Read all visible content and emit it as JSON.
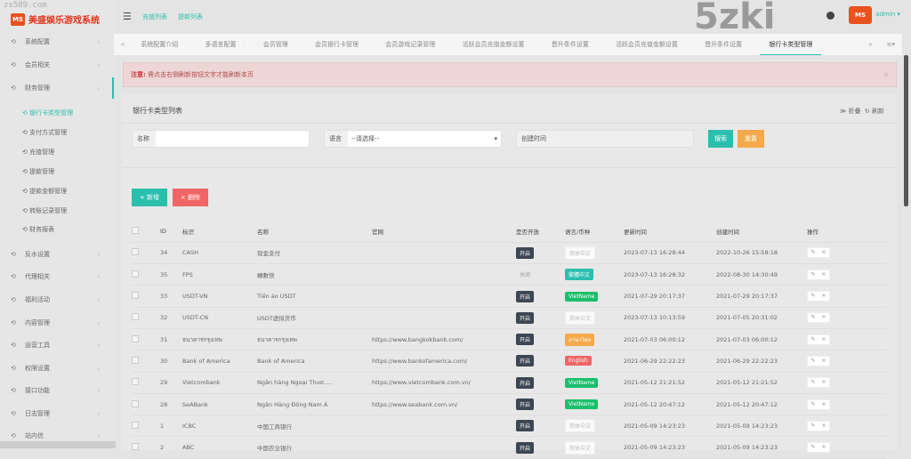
{
  "watermark": "zs589.com",
  "brand": {
    "logo": "MS",
    "title": "美盛娱乐游戏系统"
  },
  "header": {
    "links": [
      "充值列表",
      "提款列表"
    ],
    "user": "admin ▾",
    "big_watermark": "5zki"
  },
  "sidebar": {
    "top": [
      {
        "label": "系统配置"
      },
      {
        "label": "会员相关"
      },
      {
        "label": "财务管理"
      }
    ],
    "sub": [
      {
        "label": "银行卡类型管理",
        "active": true
      },
      {
        "label": "支付方式管理"
      },
      {
        "label": "充值管理"
      },
      {
        "label": "提款管理"
      },
      {
        "label": "提款金额管理"
      },
      {
        "label": "转账记录管理"
      },
      {
        "label": "财务报表"
      }
    ],
    "bottom": [
      {
        "label": "反水设置"
      },
      {
        "label": "代理相关"
      },
      {
        "label": "福利活动"
      },
      {
        "label": "内容管理"
      },
      {
        "label": "运营工具"
      },
      {
        "label": "权限设置"
      },
      {
        "label": "接口功能"
      },
      {
        "label": "日志管理"
      },
      {
        "label": "站内信"
      }
    ]
  },
  "tabs": [
    "系统配置介绍",
    "多语言配置",
    "会员管理",
    "会员银行卡管理",
    "会员游戏记录管理",
    "活跃会员充值金额设置",
    "晋升条件设置",
    "活跃会员充值金额设置",
    "晋升条件设置",
    "银行卡类型管理"
  ],
  "active_tab": "银行卡类型管理",
  "alert": {
    "label": "注意:",
    "text": "需点击右侧刷新按钮文字才能刷新本页",
    "close": "×"
  },
  "panel": {
    "title": "银行卡类型列表",
    "collapse": "≫ 折叠",
    "refresh": "↻ 刷新",
    "filters": {
      "name_label": "名称",
      "name_value": "",
      "lang_label": "语言",
      "lang_value": "--请选择--",
      "time_label": "创建时间",
      "time_value": ""
    },
    "search": "搜索",
    "reset": "重置",
    "add": "+ 新增",
    "delete": "× 删除"
  },
  "colors": {
    "accent": "#2bbfae",
    "danger": "#f06565",
    "warning": "#f5a94a",
    "green": "#1cbf6a"
  },
  "table": {
    "headers": [
      "ID",
      "标识",
      "名称",
      "官网",
      "是否开放",
      "语言/币种",
      "更新时间",
      "创建时间",
      "操作"
    ],
    "rows": [
      {
        "id": "34",
        "code": "CASH",
        "name": "现金支付",
        "site": "",
        "open": "开启",
        "lang": "简体中文",
        "lc": "plain",
        "updated": "2023-07-13 16:28:44",
        "created": "2022-10-26 15:58:18"
      },
      {
        "id": "35",
        "code": "FPS",
        "name": "轉數快",
        "site": "",
        "open": "关闭",
        "lang": "繁體中文",
        "lc": "#2bbfae",
        "updated": "2023-07-13 16:28:32",
        "created": "2022-08-30 14:30:49"
      },
      {
        "id": "33",
        "code": "USDT-VN",
        "name": "Tiền ảo USDT",
        "site": "",
        "open": "开启",
        "lang": "VietName",
        "lc": "#1cbf6a",
        "updated": "2021-07-29 20:17:37",
        "created": "2021-07-29 20:17:37"
      },
      {
        "id": "32",
        "code": "USDT-CN",
        "name": "USDT虚拟货币",
        "site": "",
        "open": "开启",
        "lang": "简体中文",
        "lc": "plain",
        "updated": "2023-07-13 10:13:59",
        "created": "2021-07-05 20:31:02"
      },
      {
        "id": "31",
        "code": "ธนาคารกรุงเทพ",
        "name": "ธนาคารกรุงเทพ",
        "site": "https://www.bangkokbank.com/",
        "open": "开启",
        "lang": "ภาษาไทย",
        "lc": "#f5a94a",
        "updated": "2021-07-03 06:00:12",
        "created": "2021-07-03 06:00:12"
      },
      {
        "id": "30",
        "code": "Bank of America",
        "name": "Bank of America",
        "site": "https://www.bankofamerica.com/",
        "open": "开启",
        "lang": "English",
        "lc": "#f06565",
        "updated": "2021-06-29 22:22:23",
        "created": "2021-06-29 22:22:23"
      },
      {
        "id": "29",
        "code": "Vietcombank",
        "name": "Ngân hàng Ngoại Thươ.....",
        "site": "https://www.vietcombank.com.vn/",
        "open": "开启",
        "lang": "VietName",
        "lc": "#1cbf6a",
        "updated": "2021-05-12 21:21:52",
        "created": "2021-05-12 21:21:52"
      },
      {
        "id": "28",
        "code": "SeABank",
        "name": "Ngân Hàng Đông Nam Á",
        "site": "https://www.seabank.com.vn/",
        "open": "开启",
        "lang": "VietName",
        "lc": "#1cbf6a",
        "updated": "2021-05-12 20:47:12",
        "created": "2021-05-12 20:47:12"
      },
      {
        "id": "1",
        "code": "ICBC",
        "name": "中国工商银行",
        "site": "",
        "open": "开启",
        "lang": "简体中文",
        "lc": "plain",
        "updated": "2021-05-09 14:23:23",
        "created": "2021-05-09 14:23:23"
      },
      {
        "id": "2",
        "code": "ABC",
        "name": "中国农业银行",
        "site": "",
        "open": "开启",
        "lang": "简体中文",
        "lc": "plain",
        "updated": "2021-05-09 14:23:23",
        "created": "2021-05-09 14:23:23"
      }
    ]
  }
}
